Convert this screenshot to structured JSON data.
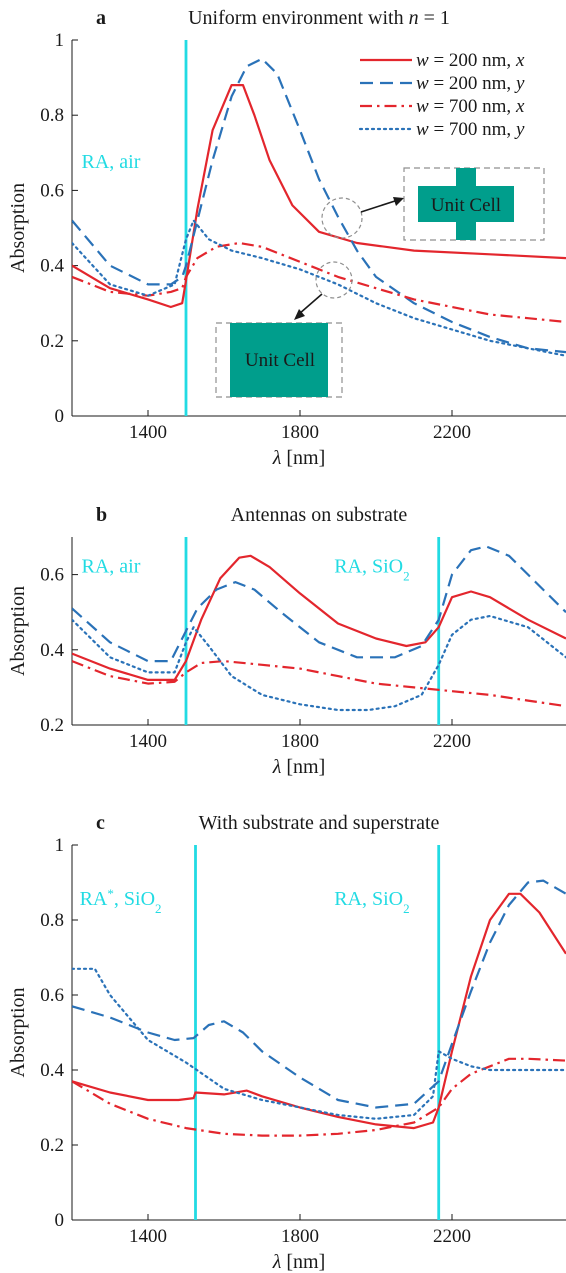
{
  "colors": {
    "red": "#e3262d",
    "blue": "#2a72b8",
    "cyan": "#22dbe3",
    "teal": "#009e8c",
    "axis": "#1a1a1a",
    "dashgray": "#8f8f8f"
  },
  "legend": {
    "w": "w",
    "eq200": " = 200 nm, ",
    "eq700": " = 700 nm, ",
    "x": "x",
    "y": "y"
  },
  "insets": {
    "cross_label": "Unit Cell",
    "square_label": "Unit Cell"
  },
  "chart_data": [
    {
      "letter": "a",
      "type": "line",
      "title": "Uniform environment with n = 1",
      "title_main": "Uniform environment with ",
      "title_var": "n",
      "title_tail": " = 1",
      "xlabel_sym": "λ",
      "xlabel_unit": " [nm]",
      "ylabel": "Absorption",
      "xlim": [
        1200,
        2500
      ],
      "ylim": [
        0,
        1
      ],
      "xticks": [
        1400,
        1800,
        2200
      ],
      "yticks": [
        "0",
        "0.2",
        "0.4",
        "0.6",
        "0.8",
        "1"
      ],
      "ytick_values": [
        0,
        0.2,
        0.4,
        0.6,
        0.8,
        1
      ],
      "legend_position": "top-right",
      "vlines": [
        1500
      ],
      "annotations": [
        {
          "text": "RA, air",
          "x": 1225,
          "y": 0.66
        }
      ],
      "series": [
        {
          "name": "w = 200 nm, x",
          "style": "solid",
          "color": "red",
          "x": [
            1200,
            1300,
            1400,
            1460,
            1490,
            1500,
            1530,
            1570,
            1620,
            1650,
            1680,
            1720,
            1780,
            1850,
            1950,
            2100,
            2300,
            2500
          ],
          "y": [
            0.4,
            0.34,
            0.31,
            0.29,
            0.3,
            0.36,
            0.55,
            0.76,
            0.88,
            0.88,
            0.8,
            0.68,
            0.56,
            0.49,
            0.46,
            0.44,
            0.43,
            0.42
          ]
        },
        {
          "name": "w = 200 nm, y",
          "style": "dashed",
          "color": "blue",
          "x": [
            1200,
            1300,
            1400,
            1460,
            1490,
            1500,
            1530,
            1570,
            1620,
            1660,
            1700,
            1740,
            1800,
            1850,
            1900,
            1950,
            2000,
            2100,
            2200,
            2300,
            2400,
            2500
          ],
          "y": [
            0.52,
            0.4,
            0.35,
            0.35,
            0.37,
            0.4,
            0.52,
            0.68,
            0.85,
            0.93,
            0.95,
            0.91,
            0.76,
            0.63,
            0.53,
            0.44,
            0.37,
            0.3,
            0.25,
            0.21,
            0.18,
            0.17
          ]
        },
        {
          "name": "w = 700 nm, x",
          "style": "dashdot",
          "color": "red",
          "x": [
            1200,
            1300,
            1400,
            1460,
            1490,
            1500,
            1530,
            1580,
            1640,
            1700,
            1800,
            1900,
            2000,
            2100,
            2200,
            2300,
            2400,
            2500
          ],
          "y": [
            0.37,
            0.33,
            0.32,
            0.33,
            0.34,
            0.37,
            0.42,
            0.45,
            0.46,
            0.45,
            0.41,
            0.37,
            0.34,
            0.31,
            0.29,
            0.27,
            0.26,
            0.25
          ]
        },
        {
          "name": "w = 700 nm, y",
          "style": "dotted",
          "color": "blue",
          "x": [
            1200,
            1300,
            1400,
            1470,
            1500,
            1520,
            1560,
            1620,
            1700,
            1800,
            1900,
            2000,
            2100,
            2200,
            2300,
            2400,
            2500
          ],
          "y": [
            0.46,
            0.35,
            0.32,
            0.35,
            0.47,
            0.52,
            0.47,
            0.44,
            0.42,
            0.39,
            0.35,
            0.3,
            0.26,
            0.23,
            0.2,
            0.18,
            0.16
          ]
        }
      ]
    },
    {
      "letter": "b",
      "type": "line",
      "title": "Antennas on substrate",
      "xlabel_sym": "λ",
      "xlabel_unit": " [nm]",
      "ylabel": "Absorption",
      "xlim": [
        1200,
        2500
      ],
      "ylim": [
        0.2,
        0.7
      ],
      "xticks": [
        1400,
        1800,
        2200
      ],
      "yticks": [
        "0.2",
        "0.4",
        "0.6"
      ],
      "ytick_values": [
        0.2,
        0.4,
        0.6
      ],
      "vlines": [
        1500,
        2165
      ],
      "annotations": [
        {
          "text": "RA, air",
          "x": 1225,
          "y": 0.605
        },
        {
          "text": "RA, SiO",
          "sub": "2",
          "x": 1890,
          "y": 0.605
        }
      ],
      "series": [
        {
          "name": "w = 200 nm, x",
          "style": "solid",
          "color": "red",
          "x": [
            1200,
            1300,
            1400,
            1470,
            1500,
            1540,
            1590,
            1640,
            1670,
            1720,
            1800,
            1900,
            2000,
            2080,
            2130,
            2165,
            2200,
            2250,
            2300,
            2400,
            2500
          ],
          "y": [
            0.39,
            0.35,
            0.32,
            0.32,
            0.37,
            0.48,
            0.59,
            0.645,
            0.65,
            0.62,
            0.55,
            0.47,
            0.43,
            0.41,
            0.42,
            0.46,
            0.54,
            0.555,
            0.54,
            0.48,
            0.43
          ]
        },
        {
          "name": "w = 200 nm, y",
          "style": "dashed",
          "color": "blue",
          "x": [
            1200,
            1300,
            1400,
            1460,
            1490,
            1530,
            1580,
            1630,
            1680,
            1750,
            1850,
            1950,
            2050,
            2120,
            2165,
            2200,
            2250,
            2290,
            2350,
            2420,
            2500
          ],
          "y": [
            0.51,
            0.42,
            0.37,
            0.37,
            0.43,
            0.51,
            0.56,
            0.58,
            0.56,
            0.5,
            0.42,
            0.38,
            0.38,
            0.41,
            0.48,
            0.6,
            0.665,
            0.675,
            0.65,
            0.58,
            0.5
          ]
        },
        {
          "name": "w = 700 nm, x",
          "style": "dashdot",
          "color": "red",
          "x": [
            1200,
            1300,
            1400,
            1470,
            1500,
            1540,
            1600,
            1700,
            1800,
            1900,
            2000,
            2100,
            2200,
            2300,
            2400,
            2500
          ],
          "y": [
            0.37,
            0.33,
            0.31,
            0.315,
            0.34,
            0.365,
            0.37,
            0.36,
            0.35,
            0.33,
            0.31,
            0.3,
            0.29,
            0.28,
            0.265,
            0.25
          ]
        },
        {
          "name": "w = 700 nm, y",
          "style": "dotted",
          "color": "blue",
          "x": [
            1200,
            1300,
            1400,
            1470,
            1500,
            1520,
            1560,
            1620,
            1700,
            1800,
            1900,
            1980,
            2050,
            2120,
            2165,
            2200,
            2250,
            2300,
            2400,
            2500
          ],
          "y": [
            0.48,
            0.38,
            0.34,
            0.34,
            0.42,
            0.46,
            0.41,
            0.33,
            0.28,
            0.255,
            0.24,
            0.24,
            0.25,
            0.28,
            0.36,
            0.44,
            0.48,
            0.49,
            0.46,
            0.38
          ]
        }
      ]
    },
    {
      "letter": "c",
      "type": "line",
      "title": "With substrate and superstrate",
      "xlabel_sym": "λ",
      "xlabel_unit": " [nm]",
      "ylabel": "Absorption",
      "xlim": [
        1200,
        2500
      ],
      "ylim": [
        0,
        1
      ],
      "xticks": [
        1400,
        1800,
        2200
      ],
      "yticks": [
        "0",
        "0.2",
        "0.4",
        "0.6",
        "0.8",
        "1"
      ],
      "ytick_values": [
        0,
        0.2,
        0.4,
        0.6,
        0.8,
        1
      ],
      "vlines": [
        1525,
        2165
      ],
      "annotations": [
        {
          "text": "RA",
          "sup": "*",
          "tail": ", SiO",
          "sub": "2",
          "x": 1220,
          "y": 0.84
        },
        {
          "text": "RA, SiO",
          "sub": "2",
          "x": 1890,
          "y": 0.84
        }
      ],
      "series": [
        {
          "name": "w = 200 nm, x",
          "style": "solid",
          "color": "red",
          "x": [
            1200,
            1300,
            1400,
            1480,
            1520,
            1525,
            1600,
            1660,
            1700,
            1800,
            1900,
            2000,
            2100,
            2150,
            2165,
            2200,
            2250,
            2300,
            2350,
            2380,
            2430,
            2500
          ],
          "y": [
            0.37,
            0.34,
            0.32,
            0.32,
            0.325,
            0.34,
            0.335,
            0.345,
            0.33,
            0.3,
            0.275,
            0.255,
            0.245,
            0.26,
            0.3,
            0.45,
            0.65,
            0.8,
            0.87,
            0.87,
            0.82,
            0.71
          ]
        },
        {
          "name": "w = 200 nm, y",
          "style": "dashed",
          "color": "blue",
          "x": [
            1200,
            1300,
            1400,
            1470,
            1520,
            1560,
            1600,
            1650,
            1700,
            1800,
            1900,
            2000,
            2100,
            2165,
            2200,
            2250,
            2300,
            2350,
            2400,
            2440,
            2500
          ],
          "y": [
            0.57,
            0.54,
            0.5,
            0.48,
            0.485,
            0.52,
            0.53,
            0.5,
            0.45,
            0.38,
            0.32,
            0.3,
            0.31,
            0.37,
            0.47,
            0.61,
            0.74,
            0.84,
            0.9,
            0.905,
            0.87
          ]
        },
        {
          "name": "w = 700 nm, x",
          "style": "dashdot",
          "color": "red",
          "x": [
            1200,
            1300,
            1400,
            1500,
            1600,
            1700,
            1800,
            1900,
            2000,
            2100,
            2165,
            2200,
            2250,
            2300,
            2350,
            2400,
            2500
          ],
          "y": [
            0.37,
            0.31,
            0.27,
            0.245,
            0.23,
            0.225,
            0.225,
            0.23,
            0.24,
            0.26,
            0.3,
            0.35,
            0.39,
            0.41,
            0.43,
            0.43,
            0.425
          ]
        },
        {
          "name": "w = 700 nm, y",
          "style": "dotted",
          "color": "blue",
          "x": [
            1200,
            1260,
            1300,
            1400,
            1500,
            1600,
            1700,
            1800,
            1900,
            2000,
            2100,
            2150,
            2165,
            2200,
            2250,
            2300,
            2400,
            2500
          ],
          "y": [
            0.67,
            0.67,
            0.6,
            0.48,
            0.42,
            0.35,
            0.32,
            0.3,
            0.28,
            0.27,
            0.28,
            0.33,
            0.45,
            0.43,
            0.41,
            0.4,
            0.4,
            0.4
          ]
        }
      ]
    }
  ]
}
